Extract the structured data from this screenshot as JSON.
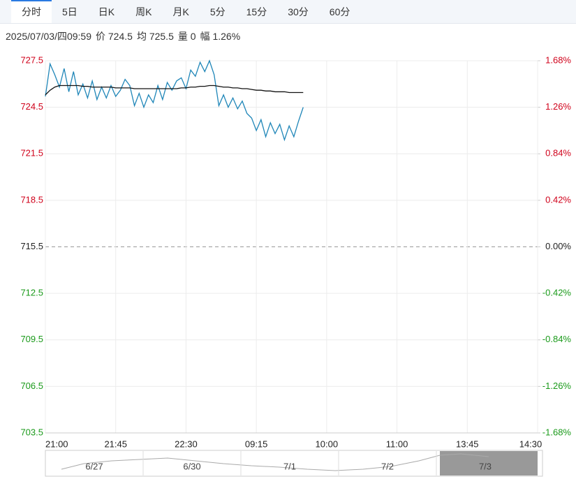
{
  "tabs": [
    "分时",
    "5日",
    "日K",
    "周K",
    "月K",
    "5分",
    "15分",
    "30分",
    "60分"
  ],
  "info": [
    "2025/07/03/四09:59",
    "价 724.5",
    "均 725.5",
    "量 0",
    "幅 1.26%"
  ],
  "chart_data": {
    "type": "line",
    "x": [
      0,
      3,
      6,
      9,
      12,
      15,
      18,
      21,
      24,
      27,
      30,
      33,
      36,
      39,
      42,
      45,
      48,
      51,
      54,
      57,
      60,
      63,
      66,
      69,
      72,
      75,
      78,
      81,
      84,
      87,
      90,
      93,
      96,
      99,
      102,
      105,
      108,
      111,
      114,
      117,
      120,
      123,
      126,
      129,
      132,
      135,
      138,
      141,
      144,
      147,
      150,
      153,
      156,
      159,
      162,
      165
    ],
    "series": [
      {
        "color": "#1f86b8",
        "values": [
          725.2,
          727.3,
          726.6,
          725.8,
          727.0,
          725.5,
          726.8,
          725.3,
          726.0,
          725.1,
          726.2,
          725.0,
          725.8,
          725.1,
          725.9,
          725.2,
          725.6,
          726.3,
          725.9,
          724.6,
          725.4,
          724.5,
          725.3,
          724.8,
          725.9,
          725.0,
          726.1,
          725.6,
          726.2,
          726.4,
          725.7,
          726.9,
          726.5,
          727.4,
          726.8,
          727.5,
          726.6,
          724.6,
          725.3,
          724.5,
          725.1,
          724.4,
          724.9,
          724.1,
          723.8,
          723.0,
          723.7,
          722.6,
          723.5,
          722.8,
          723.4,
          722.4,
          723.3,
          722.6,
          723.6,
          724.5
        ]
      },
      {
        "color": "#111111",
        "values": [
          725.3,
          725.6,
          725.8,
          725.9,
          725.9,
          725.9,
          725.9,
          725.9,
          725.85,
          725.85,
          725.8,
          725.8,
          725.8,
          725.8,
          725.8,
          725.75,
          725.75,
          725.75,
          725.75,
          725.7,
          725.7,
          725.7,
          725.7,
          725.7,
          725.7,
          725.7,
          725.7,
          725.7,
          725.7,
          725.75,
          725.75,
          725.8,
          725.8,
          725.85,
          725.85,
          725.9,
          725.9,
          725.85,
          725.8,
          725.8,
          725.75,
          725.75,
          725.7,
          725.7,
          725.65,
          725.6,
          725.6,
          725.55,
          725.55,
          725.5,
          725.5,
          725.5,
          725.45,
          725.45,
          725.45,
          725.45
        ]
      }
    ],
    "xlim": [
      0,
      315
    ],
    "xticks": [
      {
        "value": 0,
        "label": "21:00"
      },
      {
        "value": 45,
        "label": "21:45"
      },
      {
        "value": 90,
        "label": "22:30"
      },
      {
        "value": 135,
        "label": "09:15"
      },
      {
        "value": 180,
        "label": "10:00"
      },
      {
        "value": 225,
        "label": "11:00"
      },
      {
        "value": 270,
        "label": "13:45"
      },
      {
        "value": 315,
        "label": "14:30"
      }
    ],
    "ylim": [
      703.5,
      727.5
    ],
    "yticks": [
      727.5,
      724.5,
      721.5,
      718.5,
      715.5,
      712.5,
      709.5,
      706.5,
      703.5
    ],
    "baseline": 715.5,
    "y2lim": [
      -1.68,
      1.68
    ],
    "y2ticks": [
      {
        "value": 1.68,
        "label": "1.68%"
      },
      {
        "value": 1.26,
        "label": "1.26%"
      },
      {
        "value": 0.84,
        "label": "0.84%"
      },
      {
        "value": 0.42,
        "label": "0.42%"
      },
      {
        "value": 0,
        "label": "0.00%"
      },
      {
        "value": -0.42,
        "label": "-0.42%"
      },
      {
        "value": -0.84,
        "label": "-0.84%"
      },
      {
        "value": -1.26,
        "label": "-1.26%"
      },
      {
        "value": -1.68,
        "label": "-1.68%"
      }
    ],
    "grid": true
  },
  "navigator": {
    "labels": [
      "6/27",
      "6/30",
      "7/1",
      "7/2",
      "7/3"
    ]
  }
}
